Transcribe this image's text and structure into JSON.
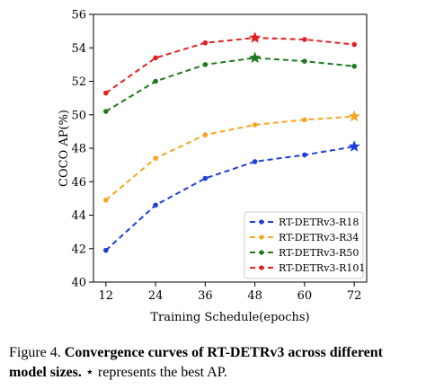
{
  "chart_data": {
    "type": "line",
    "x": [
      12,
      24,
      36,
      48,
      60,
      72
    ],
    "xlabel": "Training Schedule(epochs)",
    "ylabel": "COCO AP(%)",
    "xlim": [
      9,
      75
    ],
    "ylim": [
      40,
      56
    ],
    "xticks": [
      "12",
      "24",
      "36",
      "48",
      "60",
      "72"
    ],
    "yticks": [
      "40",
      "42",
      "44",
      "46",
      "48",
      "50",
      "52",
      "54",
      "56"
    ],
    "grid": false,
    "legend_position": "lower-right",
    "series": [
      {
        "name": "RT-DETRv3-R18",
        "color": "#1f3fd6",
        "x": [
          12,
          24,
          36,
          48,
          60,
          72
        ],
        "values": [
          41.9,
          44.6,
          46.2,
          47.2,
          47.6,
          48.1
        ],
        "best_index": 5
      },
      {
        "name": "RT-DETRv3-R34",
        "color": "#f5a623",
        "x": [
          12,
          24,
          36,
          48,
          60,
          72
        ],
        "values": [
          44.9,
          47.4,
          48.8,
          49.4,
          49.7,
          49.9
        ],
        "best_index": 5
      },
      {
        "name": "RT-DETRv3-R50",
        "color": "#1f7a1f",
        "x": [
          12,
          24,
          36,
          48,
          60,
          72
        ],
        "values": [
          50.2,
          52.0,
          53.0,
          53.4,
          53.2,
          52.9
        ],
        "best_index": 3
      },
      {
        "name": "RT-DETRv3-R101",
        "color": "#e02020",
        "x": [
          12,
          24,
          36,
          48,
          60,
          72
        ],
        "values": [
          51.3,
          53.4,
          54.3,
          54.6,
          54.5,
          54.2
        ],
        "best_index": 3
      }
    ]
  },
  "caption": {
    "prefix": "Figure 4.",
    "bold": "Convergence curves of RT-DETRv3 across different model sizes.",
    "rest": "⋆ represents the best AP."
  }
}
